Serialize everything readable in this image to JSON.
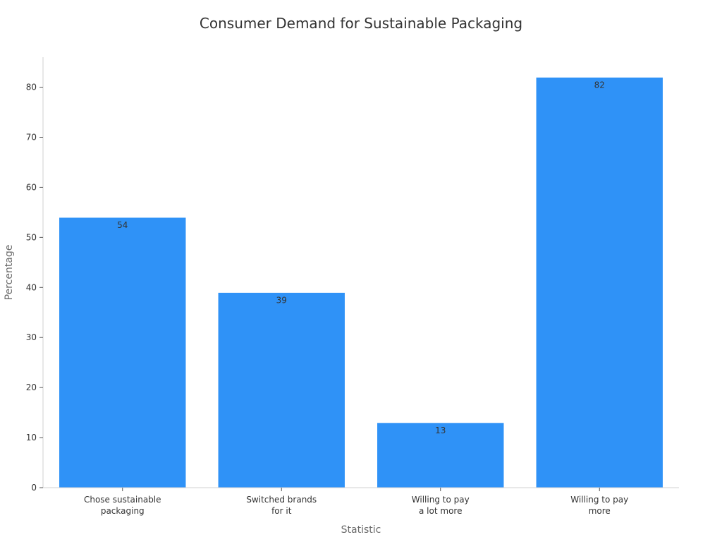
{
  "chart_data": {
    "type": "bar",
    "title": "Consumer Demand for Sustainable Packaging",
    "xlabel": "Statistic",
    "ylabel": "Percentage",
    "categories": [
      [
        "Chose sustainable",
        "packaging"
      ],
      [
        "Switched brands",
        "for it"
      ],
      [
        "Willing to pay",
        "a lot more"
      ],
      [
        "Willing to pay",
        "more"
      ]
    ],
    "values": [
      54,
      39,
      13,
      82
    ],
    "ylim": [
      0,
      86
    ],
    "yticks": [
      0,
      10,
      20,
      30,
      40,
      50,
      60,
      70,
      80
    ],
    "grid": false,
    "legend": "none",
    "colors": {
      "bar": "#2f92f7",
      "bar_edge": "#ffffff",
      "axis": "#d0d0d0",
      "tick": "#555555"
    }
  }
}
